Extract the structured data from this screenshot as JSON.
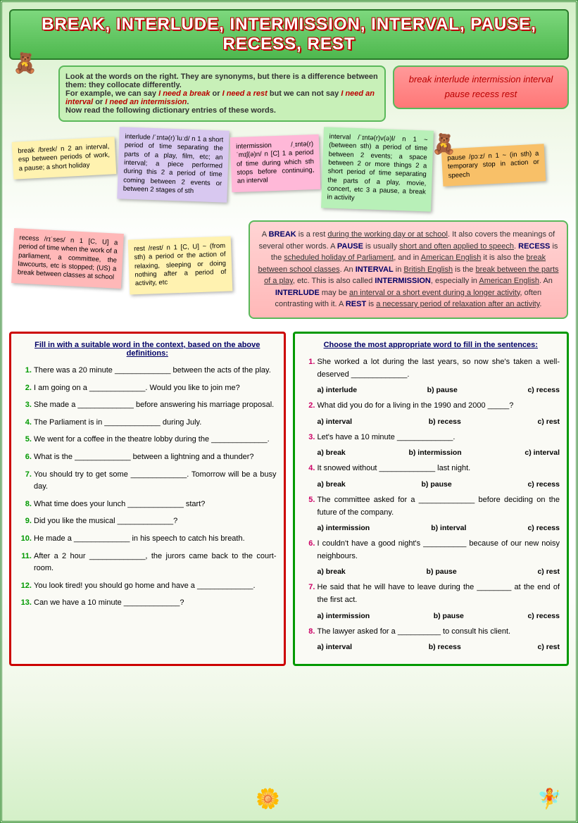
{
  "title": "BREAK, INTERLUDE, INTERMISSION, INTERVAL, PAUSE, RECESS, REST",
  "intro": {
    "l1": "Look at the words on the right. They are synonyms, but there is a difference between them: they collocate differently.",
    "l2": "For example, we can say",
    "e1": "I need a break",
    "or": "or",
    "e2": "I need a rest",
    "l3": "but we can not say",
    "e3": "I need an interval",
    "e4": "I need an intermission",
    "l4": "Now read the following dictionary entries of these words."
  },
  "words": "break   interlude   intermission   interval   pause   recess   rest",
  "defs": {
    "break": "break /breɪk/ n 2 an interval, esp between periods of work, a pause; a short holiday",
    "interlude": "interlude /ˈɪntə(r)ˈluːd/ n 1 a short period of time separating the parts of a play, film, etc; an interval; a piece performed during this 2 a period of time coming between 2 events or between 2 stages of sth",
    "intermission": "intermission /ˌɪntə(r)ˈmɪʃ(ə)n/ n [C] 1 a period of time during which sth stops before continuing, an interval",
    "interval": "interval /ˈɪntə(r)v(ə)l/ n 1 ~ (between sth) a period of time between 2 events; a space between 2 or more things 2 a short period of time separating the parts of a play, movie, concert, etc 3 a pause, a break in activity",
    "pause": "pause /pɔːz/ n 1 ~ (in sth) a temporary stop in action or speech",
    "recess": "recess /rɪˈses/ n 1 [C, U] a period of time when the work of a parliament, a committee, the lawcourts, etc is stopped; (US) a break between classes at school",
    "rest": "rest /rest/ n 1 [C, U] ~ (from sth) a period or the action of relaxing, sleeping or doing nothing after a period of activity, etc"
  },
  "explain": "A BREAK is a rest during the working day or at school. It also covers the meanings of several other words. A PAUSE is usually short and often applied to speech. RECESS is the scheduled holiday of Parliament, and in American English it is also the break between school classes. An INTERVAL in British English is the break between the parts of a play, etc. This is also called INTERMISSION, especially in American English. An INTERLUDE may be an interval or a short event during a longer activity, often contrasting with it. A REST is a necessary period of relaxation after an activity.",
  "ex1": {
    "h": "Fill in with a suitable word in the context, based on the above definitions:",
    "q": [
      "There was a 20 minute _____________ between the acts of the play.",
      "I am going on a _____________. Would you like to join me?",
      "She made a _____________ before answering his marriage proposal.",
      "The Parliament is in _____________ during July.",
      "We went for a coffee in the theatre lobby during the _____________.",
      "What is the _____________ between a lightning and a thunder?",
      "You should try to get some _____________. Tomorrow will be a busy day.",
      "What time does your lunch _____________ start?",
      "Did you like the musical _____________?",
      "He made a _____________ in his speech to catch his breath.",
      "After a 2 hour _____________, the jurors came back to the court-room.",
      "You look tired! you should go home and have a _____________.",
      "Can we have a 10 minute _____________?"
    ]
  },
  "ex2": {
    "h": "Choose the most appropriate word to fill in the sentences:",
    "items": [
      {
        "q": "She worked a lot during the last years, so now she's taken a well-deserved _____________.",
        "a": "a) interlude",
        "b": "b) pause",
        "c": "c) recess"
      },
      {
        "q": "What did you do for a living in the 1990 and 2000 _____?",
        "a": "a) interval",
        "b": "b) recess",
        "c": "c) rest"
      },
      {
        "q": "Let's have a 10 minute _____________.",
        "a": "a) break",
        "b": "b) intermission",
        "c": "c) interval"
      },
      {
        "q": "It snowed without _____________ last night.",
        "a": "a) break",
        "b": "b) pause",
        "c": "c) recess"
      },
      {
        "q": "The committee asked for a _____________ before deciding on the future of the company.",
        "a": "a) intermission",
        "b": "b) interval",
        "c": "c) recess"
      },
      {
        "q": "I couldn't have a good night's __________ because of our new noisy neighbours.",
        "a": "a) break",
        "b": "b) pause",
        "c": "c) rest"
      },
      {
        "q": "He said that he will have to leave during the ________ at the end of the first act.",
        "a": "a) intermission",
        "b": "b) pause",
        "c": "c) recess"
      },
      {
        "q": "The lawyer asked for a __________ to consult his client.",
        "a": "a) interval",
        "b": "b) recess",
        "c": "c) rest"
      }
    ]
  }
}
